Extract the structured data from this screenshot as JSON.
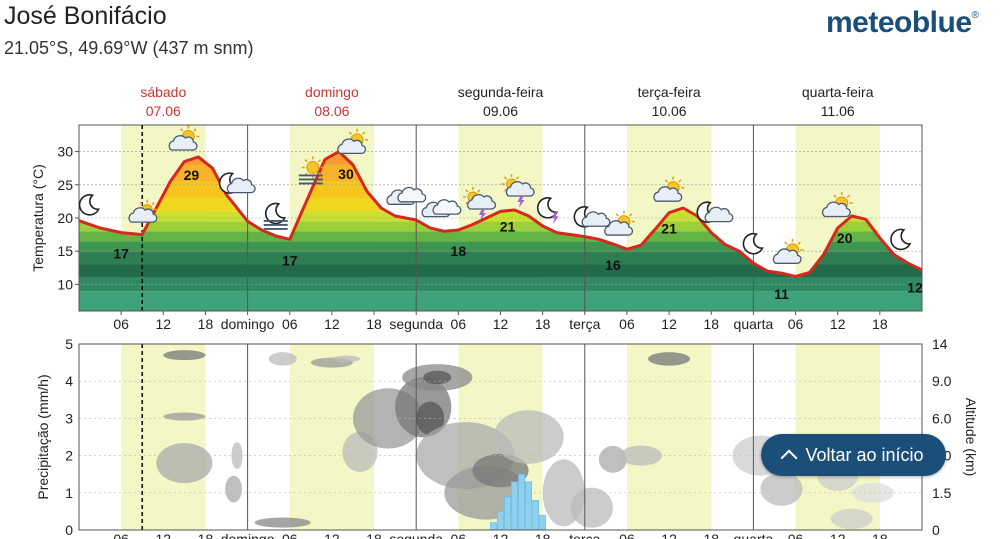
{
  "header": {
    "location": "José Bonifácio",
    "coords": "21.05°S, 49.69°W (437 m snm)",
    "logo": "meteoblue",
    "logo_mark": "®"
  },
  "colors": {
    "weekend_day": "#cc3333",
    "weekday": "#222222",
    "temp_line": "#d8281e",
    "daylight": "#f3f7c5",
    "precip_bar": "#8fd0ef",
    "button": "#1b4f7a"
  },
  "days": [
    {
      "name": "sábado",
      "date": "07.06",
      "weekend": true
    },
    {
      "name": "domingo",
      "date": "08.06",
      "weekend": true
    },
    {
      "name": "segunda-feira",
      "date": "09.06",
      "weekend": false
    },
    {
      "name": "terça-feira",
      "date": "10.06",
      "weekend": false
    },
    {
      "name": "quarta-feira",
      "date": "11.06",
      "weekend": false
    }
  ],
  "x_ticks": [
    "06",
    "12",
    "18",
    "domingo",
    "06",
    "12",
    "18",
    "segunda",
    "06",
    "12",
    "18",
    "terça",
    "06",
    "12",
    "18",
    "quarta",
    "06",
    "12",
    "18"
  ],
  "chart_data": [
    {
      "type": "line",
      "ylabel": "Temperatura (°C)",
      "ylim": [
        6,
        34
      ],
      "yticks": [
        10,
        15,
        20,
        25,
        30
      ],
      "x_hours_range": [
        0,
        120
      ],
      "now_hour": 9,
      "series": [
        {
          "x": [
            0,
            3,
            6,
            9,
            11,
            13,
            15,
            17,
            19,
            21,
            24,
            26,
            28,
            30,
            33,
            35,
            37,
            39,
            41,
            43,
            45,
            48,
            50,
            52,
            54,
            56,
            58,
            60,
            62,
            64,
            66,
            68,
            70,
            72,
            74,
            76,
            78,
            80,
            82,
            84,
            86,
            88,
            90,
            92,
            94,
            96,
            98,
            100,
            102,
            104,
            106,
            108,
            110,
            112,
            114,
            116,
            118,
            120
          ],
          "y": [
            19.6,
            18.5,
            17.8,
            17.5,
            21.5,
            25.5,
            28.5,
            29.2,
            27.5,
            23.5,
            19.5,
            18.2,
            17.3,
            16.8,
            24,
            28.8,
            30,
            28,
            24,
            21.5,
            20.3,
            19.7,
            18.5,
            18,
            18.2,
            19,
            20,
            21,
            21.2,
            20.3,
            18.8,
            17.8,
            17.5,
            17.2,
            16.8,
            16.1,
            15.3,
            15.9,
            18.3,
            20.8,
            21.5,
            20.3,
            17.8,
            16,
            15,
            13.2,
            12,
            11.7,
            11.2,
            11.8,
            14.5,
            18.5,
            20.3,
            19.8,
            17,
            14.5,
            13.2,
            12.2
          ]
        }
      ],
      "annotations": [
        {
          "x": 6,
          "label": "17"
        },
        {
          "x": 16,
          "label": "29"
        },
        {
          "x": 30,
          "label": "17"
        },
        {
          "x": 38,
          "label": "30"
        },
        {
          "x": 54,
          "label": "18"
        },
        {
          "x": 61,
          "label": "21"
        },
        {
          "x": 76,
          "label": "16"
        },
        {
          "x": 84,
          "label": "21"
        },
        {
          "x": 100,
          "label": "11"
        },
        {
          "x": 109,
          "label": "20"
        },
        {
          "x": 119,
          "label": "12"
        }
      ],
      "weather_icons": [
        {
          "x": 1.5,
          "icon": "moon-icon"
        },
        {
          "x": 9,
          "icon": "partly-cloudy-icon"
        },
        {
          "x": 15,
          "icon": "sun-cloud-icon"
        },
        {
          "x": 22,
          "icon": "moon-cloud-icon"
        },
        {
          "x": 28,
          "icon": "moon-fog-icon"
        },
        {
          "x": 33,
          "icon": "sun-fog-icon"
        },
        {
          "x": 39,
          "icon": "sun-cloud-icon"
        },
        {
          "x": 46,
          "icon": "cloudy-icon"
        },
        {
          "x": 51,
          "icon": "cloudy-icon"
        },
        {
          "x": 56.5,
          "icon": "sun-thunder-icon"
        },
        {
          "x": 62,
          "icon": "sun-thunder-icon"
        },
        {
          "x": 67,
          "icon": "moon-thunder-icon"
        },
        {
          "x": 72.5,
          "icon": "moon-cloud-icon"
        },
        {
          "x": 77,
          "icon": "sun-cloud-icon"
        },
        {
          "x": 84,
          "icon": "sun-cloud-icon"
        },
        {
          "x": 90,
          "icon": "moon-cloud-icon"
        },
        {
          "x": 96,
          "icon": "moon-icon"
        },
        {
          "x": 101,
          "icon": "sun-cloud-icon"
        },
        {
          "x": 108,
          "icon": "sun-cloud-icon"
        },
        {
          "x": 117,
          "icon": "moon-icon"
        }
      ]
    },
    {
      "type": "bar",
      "ylabel": "Precipitação (mm/h)",
      "y2label": "Altitude (km)",
      "ylim": [
        0,
        5
      ],
      "yticks": [
        0,
        1,
        2,
        3,
        4,
        5
      ],
      "y2ticks": [
        "0",
        "1.5",
        "3.0",
        "6.0",
        "9.0",
        "14"
      ],
      "x": [
        59,
        60,
        61,
        62,
        63,
        64,
        65,
        66
      ],
      "values": [
        0.2,
        0.5,
        0.9,
        1.3,
        1.5,
        1.3,
        0.8,
        0.4
      ]
    }
  ],
  "ui": {
    "back_to_top": "Voltar ao início"
  }
}
